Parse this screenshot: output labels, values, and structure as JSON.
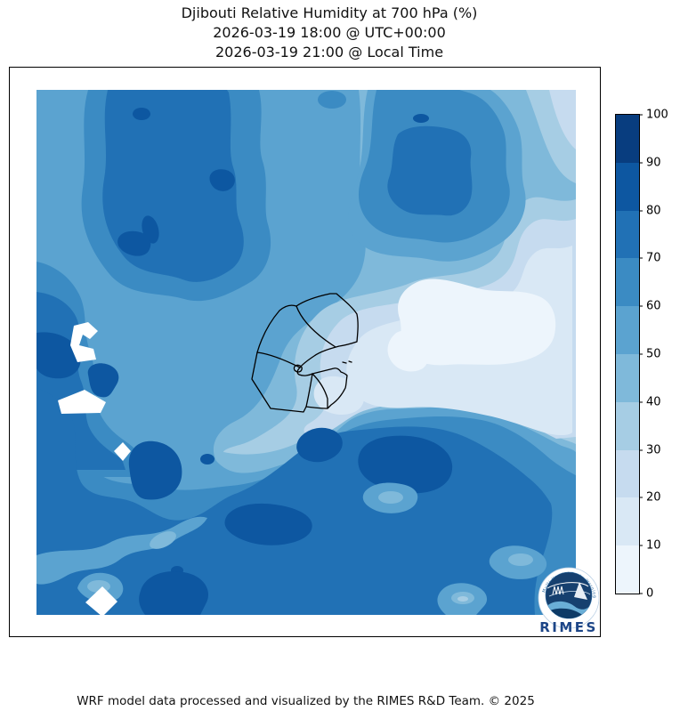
{
  "title": {
    "line1": "Djibouti Relative Humidity at 700 hPa (%)",
    "line2": "2026-03-19 18:00 @ UTC+00:00",
    "line3": "2026-03-19 21:00 @ Local Time"
  },
  "footer": {
    "credit": "WRF model data processed and visualized by the RIMES R&D Team. © 2025"
  },
  "logo": {
    "label": "RIMES",
    "ring_text": "Multi-Hazard Early Warning System"
  },
  "map": {
    "country": "Djibouti",
    "boundary_color": "#000000",
    "masked_color": "#ffffff"
  },
  "chart_data": {
    "type": "heatmap",
    "subtype": "filled-contour-map",
    "title": "Djibouti Relative Humidity at 700 hPa (%)",
    "variable": "Relative Humidity",
    "pressure_level": "700 hPa",
    "units": "%",
    "valid_time_utc": "2026-03-19 18:00 @ UTC+00:00",
    "valid_time_local": "2026-03-19 21:00 @ Local Time",
    "colormap": "Blues",
    "contour_levels": [
      0,
      10,
      20,
      30,
      40,
      50,
      60,
      70,
      80,
      90,
      100
    ],
    "colorbar_ticks": [
      0,
      10,
      20,
      30,
      40,
      50,
      60,
      70,
      80,
      90,
      100
    ],
    "colors": [
      "#edf5fc",
      "#d9e8f5",
      "#c6dbef",
      "#a6cde4",
      "#7fb9da",
      "#5ba3d0",
      "#3b8bc3",
      "#2171b5",
      "#0d57a1",
      "#083d7f"
    ],
    "legend_position": "right-vertical-colorbar",
    "features": [
      {
        "area": "center-east, around and east of Djibouti border",
        "humidity_pct": "0-20"
      },
      {
        "area": "north-west vertical band",
        "humidity_pct": "60-90"
      },
      {
        "area": "north-east blob",
        "humidity_pct": "50-80"
      },
      {
        "area": "west edge band with small white masked patches",
        "humidity_pct": "70-90"
      },
      {
        "area": "broad south band across domain with dark cores",
        "humidity_pct": "70-90"
      },
      {
        "area": "south-west diagonal lighter lane",
        "humidity_pct": "40-60"
      },
      {
        "area": "south-east corner",
        "humidity_pct": "50-70"
      }
    ]
  }
}
